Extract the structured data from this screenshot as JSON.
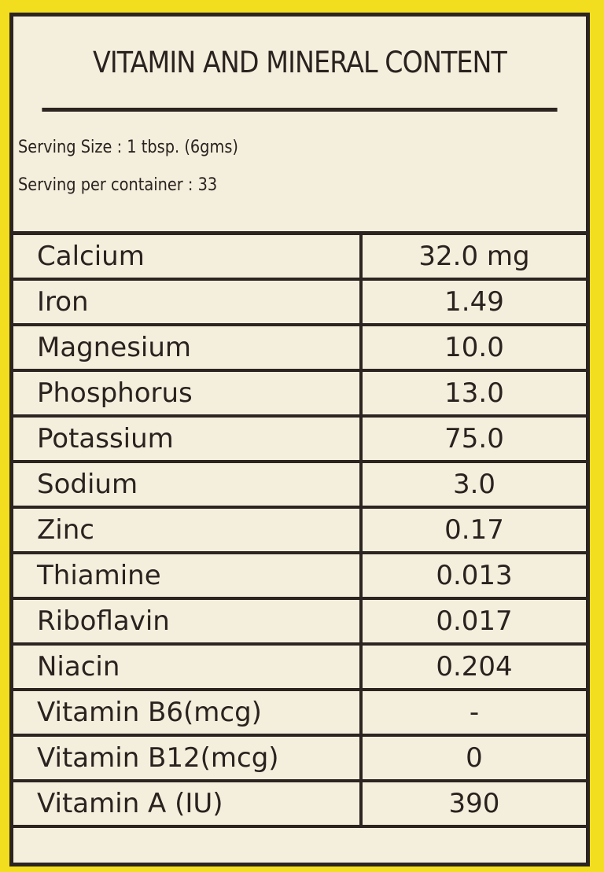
{
  "title": "VITAMIN AND MINERAL CONTENT",
  "serving_size": "Serving Size : 1 tbsp. (6gms)",
  "servings_per_container": "Serving per container : 33",
  "rows": [
    {
      "nutrient": "Calcium",
      "value": "32.0 mg"
    },
    {
      "nutrient": "Iron",
      "value": "1.49"
    },
    {
      "nutrient": "Magnesium",
      "value": "10.0"
    },
    {
      "nutrient": "Phosphorus",
      "value": "13.0"
    },
    {
      "nutrient": "Potassium",
      "value": "75.0"
    },
    {
      "nutrient": "Sodium",
      "value": "3.0"
    },
    {
      "nutrient": "Zinc",
      "value": "0.17"
    },
    {
      "nutrient": "Thiamine",
      "value": "0.013"
    },
    {
      "nutrient": "Riboflavin",
      "value": "0.017"
    },
    {
      "nutrient": "Niacin",
      "value": "0.204"
    },
    {
      "nutrient": "Vitamin B6(mcg)",
      "value": "-"
    },
    {
      "nutrient": "Vitamin B12(mcg)",
      "value": "0"
    },
    {
      "nutrient": "Vitamin A (IU)",
      "value": "390"
    }
  ],
  "colors": {
    "background": "#f2de1e",
    "label": "#f4eedd",
    "ink": "#2b2420"
  }
}
